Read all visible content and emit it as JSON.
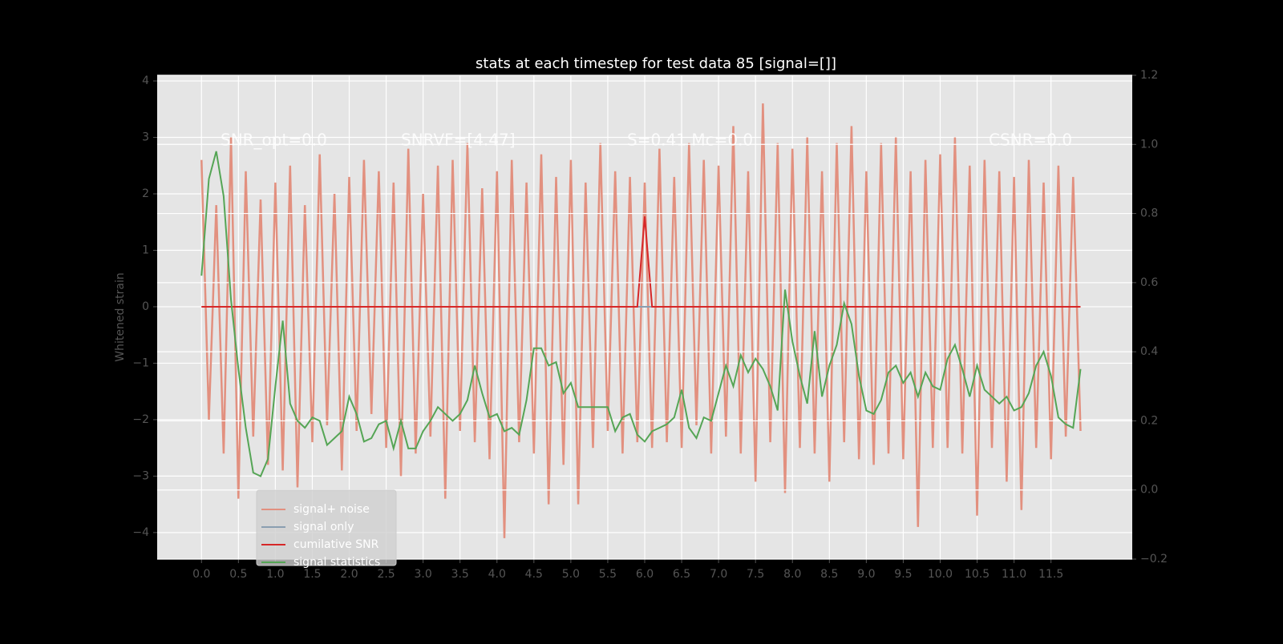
{
  "chart_data": {
    "type": "line",
    "title": "stats at each timestep for test data 85 [signal=[]]",
    "ylabel": "Whitened strain",
    "annotations": [
      "SNR_opt=0.0",
      "SNRVF=[4.47]",
      "S=0.41  Mc=0.0",
      "CSNR=0.0"
    ],
    "grid": true,
    "legend": "lower left",
    "xlim": [
      -0.6,
      12.6
    ],
    "ylim": [
      -4.47,
      4.1
    ],
    "y2lim": [
      -0.2,
      1.2
    ],
    "xticks": [
      {
        "value": 0,
        "label": "0.0"
      },
      0.5,
      {
        "value": 1,
        "label": "1.0"
      },
      1.5,
      {
        "value": 2,
        "label": "2.0"
      },
      2.5,
      {
        "value": 3,
        "label": "3.0"
      },
      3.5,
      {
        "value": 4,
        "label": "4.0"
      },
      4.5,
      {
        "value": 5,
        "label": "5.0"
      },
      5.5,
      {
        "value": 6,
        "label": "6.0"
      },
      6.5,
      {
        "value": 7,
        "label": "7.0"
      },
      7.5,
      {
        "value": 8,
        "label": "8.0"
      },
      8.5,
      {
        "value": 9,
        "label": "9.0"
      },
      9.5,
      {
        "value": 10,
        "label": "10.0"
      },
      10.5,
      {
        "value": 11,
        "label": "11.0"
      },
      11.5
    ],
    "yticks": [
      {
        "value": -4,
        "label": "−4"
      },
      {
        "value": -3,
        "label": "−3"
      },
      {
        "value": -2,
        "label": "−2"
      },
      {
        "value": -1,
        "label": "−1"
      },
      0,
      1,
      2,
      3,
      4
    ],
    "y2ticks": [
      {
        "value": -0.2,
        "label": "−0.2"
      },
      {
        "value": 0,
        "label": "0.0"
      },
      0.2,
      0.4,
      0.6,
      0.8,
      {
        "value": 1,
        "label": "1.0"
      },
      1.2
    ],
    "x": [
      0,
      0.1,
      0.2,
      0.3,
      0.4,
      0.5,
      0.6,
      0.7,
      0.8,
      0.9,
      1,
      1.1,
      1.2,
      1.3,
      1.4,
      1.5,
      1.6,
      1.7,
      1.8,
      1.9,
      2,
      2.1,
      2.2,
      2.3,
      2.4,
      2.5,
      2.6,
      2.7,
      2.8,
      2.9,
      3,
      3.1,
      3.2,
      3.3,
      3.4,
      3.5,
      3.6,
      3.7,
      3.8,
      3.9,
      4,
      4.1,
      4.2,
      4.3,
      4.4,
      4.5,
      4.6,
      4.7,
      4.8,
      4.9,
      5,
      5.1,
      5.2,
      5.3,
      5.4,
      5.5,
      5.6,
      5.7,
      5.8,
      5.9,
      6,
      6.1,
      6.2,
      6.3,
      6.4,
      6.5,
      6.6,
      6.7,
      6.8,
      6.9,
      7,
      7.1,
      7.2,
      7.3,
      7.4,
      7.5,
      7.6,
      7.7,
      7.8,
      7.9,
      8,
      8.1,
      8.2,
      8.3,
      8.4,
      8.5,
      8.6,
      8.7,
      8.8,
      8.9,
      9,
      9.1,
      9.2,
      9.3,
      9.4,
      9.5,
      9.6,
      9.7,
      9.8,
      9.9,
      10,
      10.1,
      10.2,
      10.3,
      10.4,
      10.5,
      10.6,
      10.7,
      10.8,
      10.9,
      11,
      11.1,
      11.2,
      11.3,
      11.4,
      11.5,
      11.6,
      11.7,
      11.8,
      11.9
    ],
    "series": [
      {
        "name": "signal+ noise",
        "color": "#e2907f",
        "values": [
          2.6,
          -2.0,
          1.8,
          -2.6,
          3.0,
          -3.4,
          2.4,
          -2.3,
          1.9,
          -2.8,
          2.2,
          -2.9,
          2.5,
          -3.2,
          1.8,
          -2.4,
          2.7,
          -2.1,
          2.0,
          -2.9,
          2.3,
          -2.2,
          2.6,
          -1.9,
          2.4,
          -2.5,
          2.2,
          -3.0,
          2.8,
          -2.6,
          2.0,
          -2.3,
          2.5,
          -3.4,
          2.6,
          -2.2,
          2.9,
          -2.4,
          2.1,
          -2.7,
          2.4,
          -4.1,
          2.6,
          -2.4,
          2.2,
          -2.6,
          2.7,
          -3.5,
          2.3,
          -2.8,
          2.6,
          -3.5,
          2.2,
          -2.5,
          2.9,
          -2.2,
          2.4,
          -2.6,
          2.3,
          -2.4,
          2.2,
          -2.5,
          2.8,
          -2.4,
          2.3,
          -2.5,
          2.9,
          -2.1,
          2.6,
          -2.6,
          2.5,
          -2.3,
          3.2,
          -2.6,
          2.4,
          -3.1,
          3.6,
          -2.4,
          2.9,
          -3.3,
          2.8,
          -2.5,
          3.0,
          -2.6,
          2.4,
          -3.1,
          2.9,
          -2.4,
          3.2,
          -2.7,
          2.4,
          -2.8,
          2.9,
          -2.6,
          3.0,
          -2.7,
          2.4,
          -3.9,
          2.6,
          -2.5,
          2.7,
          -2.5,
          3.0,
          -2.6,
          2.5,
          -3.7,
          2.6,
          -2.5,
          2.4,
          -3.1,
          2.3,
          -3.6,
          2.6,
          -2.5,
          2.2,
          -2.7,
          2.5,
          -2.3,
          2.3,
          -2.2
        ]
      },
      {
        "name": "signal only",
        "color": "#8a9eb0",
        "values": [
          0,
          0,
          0,
          0,
          0,
          0,
          0,
          0,
          0,
          0,
          0,
          0,
          0,
          0,
          0,
          0,
          0,
          0,
          0,
          0,
          0,
          0,
          0,
          0,
          0,
          0,
          0,
          0,
          0,
          0,
          0,
          0,
          0,
          0,
          0,
          0,
          0,
          0,
          0,
          0,
          0,
          0,
          0,
          0,
          0,
          0,
          0,
          0,
          0,
          0,
          0,
          0,
          0,
          0,
          0,
          0,
          0,
          0,
          0,
          0,
          0,
          0,
          0,
          0,
          0,
          0,
          0,
          0,
          0,
          0,
          0,
          0,
          0,
          0,
          0,
          0,
          0,
          0,
          0,
          0,
          0,
          0,
          0,
          0,
          0,
          0,
          0,
          0,
          0,
          0,
          0,
          0,
          0,
          0,
          0,
          0,
          0,
          0,
          0,
          0,
          0,
          0,
          0,
          0,
          0,
          0,
          0,
          0,
          0,
          0,
          0,
          0,
          0,
          0,
          0,
          0,
          0,
          0,
          0,
          0
        ]
      },
      {
        "name": "cumilative SNR",
        "color": "#d62728",
        "values": [
          0,
          0,
          0,
          0,
          0,
          0,
          0,
          0,
          0,
          0,
          0,
          0,
          0,
          0,
          0,
          0,
          0,
          0,
          0,
          0,
          0,
          0,
          0,
          0,
          0,
          0,
          0,
          0,
          0,
          0,
          0,
          0,
          0,
          0,
          0,
          0,
          0,
          0,
          0,
          0,
          0,
          0,
          0,
          0,
          0,
          0,
          0,
          0,
          0,
          0,
          0,
          0,
          0,
          0,
          0,
          0,
          0,
          0,
          0,
          0,
          1.6,
          0,
          0,
          0,
          0,
          0,
          0,
          0,
          0,
          0,
          0,
          0,
          0,
          0,
          0,
          0,
          0,
          0,
          0,
          0,
          0,
          0,
          0,
          0,
          0,
          0,
          0,
          0,
          0,
          0,
          0,
          0,
          0,
          0,
          0,
          0,
          0,
          0,
          0,
          0,
          0,
          0,
          0,
          0,
          0,
          0,
          0,
          0,
          0,
          0,
          0,
          0,
          0,
          0,
          0,
          0,
          0,
          0,
          0,
          0
        ]
      },
      {
        "name": "signal statistics",
        "color": "#55a555",
        "axis": "y2",
        "values": [
          0.62,
          0.9,
          0.98,
          0.85,
          0.55,
          0.35,
          0.18,
          0.05,
          0.04,
          0.09,
          0.3,
          0.49,
          0.25,
          0.2,
          0.18,
          0.21,
          0.2,
          0.13,
          0.15,
          0.17,
          0.27,
          0.22,
          0.14,
          0.15,
          0.19,
          0.2,
          0.12,
          0.2,
          0.12,
          0.12,
          0.17,
          0.2,
          0.24,
          0.22,
          0.2,
          0.22,
          0.26,
          0.36,
          0.28,
          0.21,
          0.22,
          0.17,
          0.18,
          0.16,
          0.26,
          0.41,
          0.41,
          0.36,
          0.37,
          0.28,
          0.31,
          0.24,
          0.24,
          0.24,
          0.24,
          0.24,
          0.17,
          0.21,
          0.22,
          0.16,
          0.14,
          0.17,
          0.18,
          0.19,
          0.21,
          0.29,
          0.18,
          0.15,
          0.21,
          0.2,
          0.28,
          0.36,
          0.3,
          0.39,
          0.34,
          0.38,
          0.35,
          0.3,
          0.23,
          0.58,
          0.43,
          0.33,
          0.25,
          0.46,
          0.27,
          0.36,
          0.42,
          0.54,
          0.48,
          0.33,
          0.23,
          0.22,
          0.26,
          0.34,
          0.36,
          0.31,
          0.34,
          0.27,
          0.34,
          0.3,
          0.29,
          0.38,
          0.42,
          0.35,
          0.27,
          0.36,
          0.29,
          0.27,
          0.25,
          0.27,
          0.23,
          0.24,
          0.28,
          0.36,
          0.4,
          0.33,
          0.21,
          0.19,
          0.18,
          0.35
        ]
      }
    ]
  }
}
